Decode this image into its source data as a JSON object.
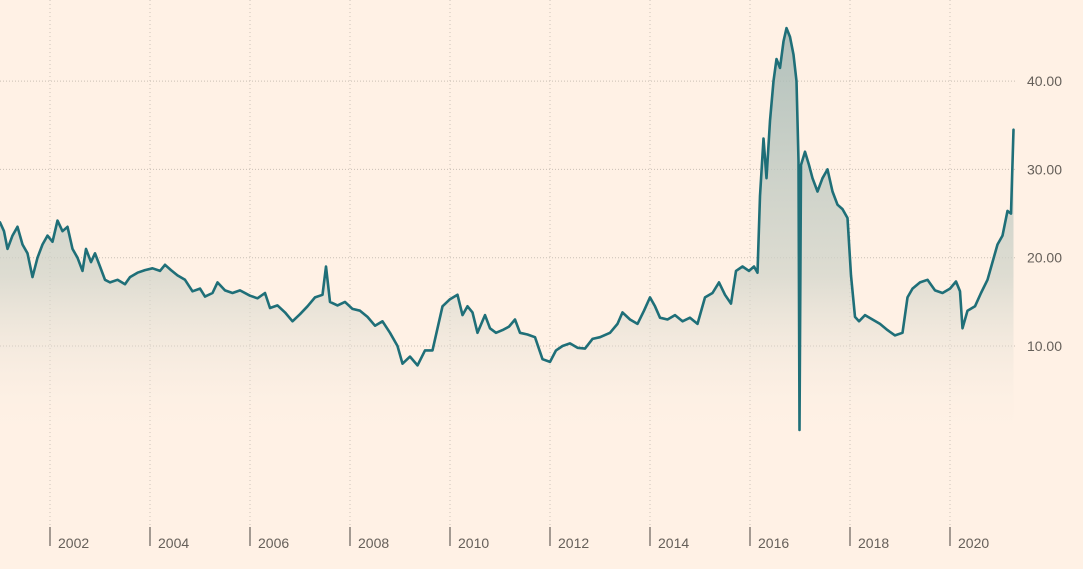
{
  "chart_data": {
    "type": "area",
    "title": "",
    "xlabel": "",
    "ylabel": "",
    "xlim": [
      2001.0,
      2021.9
    ],
    "ylim": [
      -11,
      54
    ],
    "grid": true,
    "y_axis_side": "right",
    "y_ticks": [
      10,
      20,
      30,
      40
    ],
    "y_tick_labels": [
      "10.00",
      "20.00",
      "30.00",
      "40.00"
    ],
    "x_ticks": [
      2002,
      2004,
      2006,
      2008,
      2010,
      2012,
      2014,
      2016,
      2018,
      2020
    ],
    "x_tick_labels": [
      "2002",
      "2004",
      "2006",
      "2008",
      "2010",
      "2012",
      "2014",
      "2016",
      "2018",
      "2020"
    ],
    "colors": {
      "line": "#1f6f78",
      "fill": "#a3b8b4",
      "background": "#fff1e5",
      "grid": "#c9bfb5",
      "text": "#66605a"
    },
    "series": [
      {
        "points": [
          [
            2001.0,
            24.0
          ],
          [
            2001.08,
            23.0
          ],
          [
            2001.15,
            21.0
          ],
          [
            2001.25,
            22.5
          ],
          [
            2001.35,
            23.5
          ],
          [
            2001.45,
            21.5
          ],
          [
            2001.55,
            20.5
          ],
          [
            2001.65,
            17.8
          ],
          [
            2001.75,
            20.0
          ],
          [
            2001.85,
            21.5
          ],
          [
            2001.95,
            22.5
          ],
          [
            2002.05,
            21.8
          ],
          [
            2002.15,
            24.2
          ],
          [
            2002.25,
            23.0
          ],
          [
            2002.35,
            23.5
          ],
          [
            2002.45,
            21.0
          ],
          [
            2002.55,
            20.0
          ],
          [
            2002.65,
            18.5
          ],
          [
            2002.72,
            21.0
          ],
          [
            2002.82,
            19.5
          ],
          [
            2002.9,
            20.5
          ],
          [
            2003.0,
            19.0
          ],
          [
            2003.1,
            17.5
          ],
          [
            2003.2,
            17.2
          ],
          [
            2003.35,
            17.5
          ],
          [
            2003.5,
            17.0
          ],
          [
            2003.6,
            17.8
          ],
          [
            2003.75,
            18.3
          ],
          [
            2003.9,
            18.6
          ],
          [
            2004.05,
            18.8
          ],
          [
            2004.2,
            18.5
          ],
          [
            2004.3,
            19.2
          ],
          [
            2004.42,
            18.6
          ],
          [
            2004.55,
            18.0
          ],
          [
            2004.7,
            17.5
          ],
          [
            2004.85,
            16.2
          ],
          [
            2005.0,
            16.5
          ],
          [
            2005.1,
            15.6
          ],
          [
            2005.25,
            16.0
          ],
          [
            2005.35,
            17.2
          ],
          [
            2005.5,
            16.3
          ],
          [
            2005.65,
            16.0
          ],
          [
            2005.8,
            16.3
          ],
          [
            2006.0,
            15.7
          ],
          [
            2006.15,
            15.4
          ],
          [
            2006.3,
            16.0
          ],
          [
            2006.4,
            14.3
          ],
          [
            2006.55,
            14.6
          ],
          [
            2006.7,
            13.8
          ],
          [
            2006.85,
            12.8
          ],
          [
            2007.0,
            13.6
          ],
          [
            2007.15,
            14.5
          ],
          [
            2007.3,
            15.5
          ],
          [
            2007.45,
            15.8
          ],
          [
            2007.52,
            19.0
          ],
          [
            2007.6,
            15.0
          ],
          [
            2007.75,
            14.6
          ],
          [
            2007.9,
            15.0
          ],
          [
            2008.05,
            14.2
          ],
          [
            2008.2,
            14.0
          ],
          [
            2008.35,
            13.3
          ],
          [
            2008.5,
            12.3
          ],
          [
            2008.65,
            12.8
          ],
          [
            2008.8,
            11.5
          ],
          [
            2008.95,
            10.0
          ],
          [
            2009.05,
            8.0
          ],
          [
            2009.2,
            8.8
          ],
          [
            2009.35,
            7.8
          ],
          [
            2009.5,
            9.5
          ],
          [
            2009.65,
            9.5
          ],
          [
            2009.75,
            12.0
          ],
          [
            2009.85,
            14.5
          ],
          [
            2010.0,
            15.3
          ],
          [
            2010.15,
            15.8
          ],
          [
            2010.25,
            13.5
          ],
          [
            2010.35,
            14.5
          ],
          [
            2010.45,
            13.8
          ],
          [
            2010.55,
            11.5
          ],
          [
            2010.7,
            13.5
          ],
          [
            2010.8,
            12.0
          ],
          [
            2010.92,
            11.5
          ],
          [
            2011.05,
            11.8
          ],
          [
            2011.18,
            12.2
          ],
          [
            2011.3,
            13.0
          ],
          [
            2011.4,
            11.5
          ],
          [
            2011.55,
            11.3
          ],
          [
            2011.7,
            11.0
          ],
          [
            2011.85,
            8.5
          ],
          [
            2012.0,
            8.2
          ],
          [
            2012.12,
            9.5
          ],
          [
            2012.25,
            10.0
          ],
          [
            2012.4,
            10.3
          ],
          [
            2012.55,
            9.8
          ],
          [
            2012.7,
            9.7
          ],
          [
            2012.85,
            10.8
          ],
          [
            2013.0,
            11.0
          ],
          [
            2013.2,
            11.5
          ],
          [
            2013.35,
            12.5
          ],
          [
            2013.45,
            13.8
          ],
          [
            2013.6,
            13.0
          ],
          [
            2013.75,
            12.5
          ],
          [
            2013.88,
            14.0
          ],
          [
            2014.0,
            15.5
          ],
          [
            2014.1,
            14.5
          ],
          [
            2014.2,
            13.2
          ],
          [
            2014.35,
            13.0
          ],
          [
            2014.5,
            13.5
          ],
          [
            2014.65,
            12.8
          ],
          [
            2014.8,
            13.2
          ],
          [
            2014.95,
            12.5
          ],
          [
            2015.1,
            15.5
          ],
          [
            2015.25,
            16.0
          ],
          [
            2015.38,
            17.2
          ],
          [
            2015.5,
            15.8
          ],
          [
            2015.62,
            14.8
          ],
          [
            2015.72,
            18.5
          ],
          [
            2015.85,
            19.0
          ],
          [
            2015.98,
            18.5
          ],
          [
            2016.08,
            19.0
          ],
          [
            2016.15,
            18.3
          ],
          [
            2016.2,
            27.0
          ],
          [
            2016.27,
            33.5
          ],
          [
            2016.33,
            29.0
          ],
          [
            2016.4,
            35.5
          ],
          [
            2016.47,
            40.0
          ],
          [
            2016.53,
            42.5
          ],
          [
            2016.6,
            41.5
          ],
          [
            2016.67,
            44.5
          ],
          [
            2016.73,
            46.0
          ],
          [
            2016.8,
            45.0
          ],
          [
            2016.87,
            43.0
          ],
          [
            2016.93,
            40.0
          ],
          [
            2016.97,
            31.0
          ],
          [
            2016.99,
            0.5
          ],
          [
            2017.02,
            30.5
          ],
          [
            2017.1,
            32.0
          ],
          [
            2017.18,
            30.5
          ],
          [
            2017.25,
            29.0
          ],
          [
            2017.35,
            27.5
          ],
          [
            2017.45,
            29.0
          ],
          [
            2017.55,
            30.0
          ],
          [
            2017.65,
            27.5
          ],
          [
            2017.75,
            26.0
          ],
          [
            2017.85,
            25.5
          ],
          [
            2017.95,
            24.5
          ],
          [
            2018.02,
            18.0
          ],
          [
            2018.1,
            13.3
          ],
          [
            2018.18,
            12.8
          ],
          [
            2018.3,
            13.5
          ],
          [
            2018.45,
            13.0
          ],
          [
            2018.6,
            12.5
          ],
          [
            2018.75,
            11.8
          ],
          [
            2018.9,
            11.2
          ],
          [
            2019.05,
            11.5
          ],
          [
            2019.15,
            15.5
          ],
          [
            2019.25,
            16.5
          ],
          [
            2019.4,
            17.2
          ],
          [
            2019.55,
            17.5
          ],
          [
            2019.7,
            16.3
          ],
          [
            2019.85,
            16.0
          ],
          [
            2020.0,
            16.5
          ],
          [
            2020.12,
            17.3
          ],
          [
            2020.2,
            16.2
          ],
          [
            2020.25,
            12.0
          ],
          [
            2020.35,
            14.0
          ],
          [
            2020.5,
            14.5
          ],
          [
            2020.62,
            16.0
          ],
          [
            2020.75,
            17.5
          ],
          [
            2020.85,
            19.5
          ],
          [
            2020.95,
            21.5
          ],
          [
            2021.05,
            22.5
          ],
          [
            2021.15,
            25.3
          ],
          [
            2021.22,
            25.0
          ],
          [
            2021.27,
            34.5
          ]
        ]
      }
    ]
  }
}
